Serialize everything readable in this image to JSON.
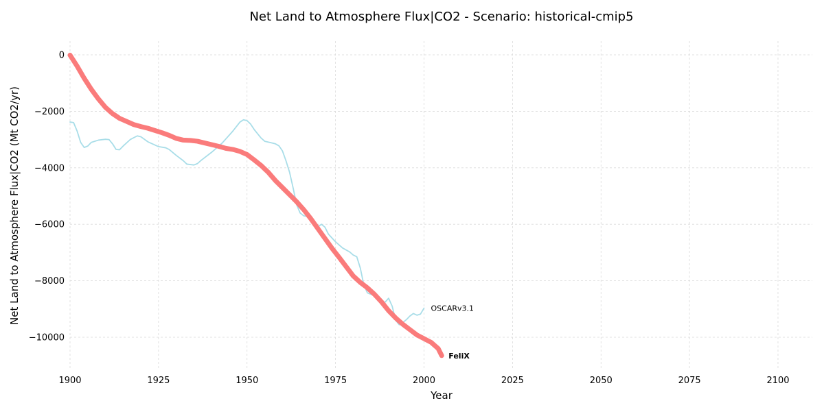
{
  "chart_data": {
    "type": "line",
    "title": "Net Land to Atmosphere Flux|CO2 - Scenario: historical-cmip5",
    "xlabel": "Year",
    "ylabel": "Net Land to Atmosphere Flux|CO2 (Mt CO2/yr)",
    "xlim": [
      1900,
      2110
    ],
    "ylim": [
      -11000,
      500
    ],
    "xticks": [
      1900,
      1925,
      1950,
      1975,
      2000,
      2025,
      2050,
      2075,
      2100
    ],
    "yticks": [
      0,
      -2000,
      -4000,
      -6000,
      -8000,
      -10000
    ],
    "xtick_labels": [
      "1900",
      "1925",
      "1950",
      "1975",
      "2000",
      "2025",
      "2050",
      "2075",
      "2100"
    ],
    "ytick_labels": [
      "0",
      "−2000",
      "−4000",
      "−6000",
      "−8000",
      "−10000"
    ],
    "grid": true,
    "legend": "none (series labelled at line ends)",
    "series": [
      {
        "name": "OSCARv3.1",
        "color": "#a8dde8",
        "width": "thin",
        "label_weight": "normal",
        "points": [
          [
            1900,
            -2380
          ],
          [
            1901,
            -2400
          ],
          [
            1902,
            -2700
          ],
          [
            1903,
            -3100
          ],
          [
            1904,
            -3280
          ],
          [
            1905,
            -3230
          ],
          [
            1906,
            -3100
          ],
          [
            1908,
            -3020
          ],
          [
            1910,
            -2990
          ],
          [
            1911,
            -3000
          ],
          [
            1912,
            -3150
          ],
          [
            1913,
            -3350
          ],
          [
            1914,
            -3360
          ],
          [
            1915,
            -3230
          ],
          [
            1917,
            -3000
          ],
          [
            1919,
            -2870
          ],
          [
            1920,
            -2900
          ],
          [
            1922,
            -3080
          ],
          [
            1925,
            -3250
          ],
          [
            1927,
            -3290
          ],
          [
            1928,
            -3350
          ],
          [
            1930,
            -3560
          ],
          [
            1932,
            -3750
          ],
          [
            1933,
            -3870
          ],
          [
            1935,
            -3900
          ],
          [
            1936,
            -3850
          ],
          [
            1937,
            -3740
          ],
          [
            1940,
            -3450
          ],
          [
            1943,
            -3120
          ],
          [
            1946,
            -2700
          ],
          [
            1948,
            -2380
          ],
          [
            1949,
            -2300
          ],
          [
            1950,
            -2330
          ],
          [
            1951,
            -2450
          ],
          [
            1952,
            -2640
          ],
          [
            1954,
            -2950
          ],
          [
            1955,
            -3060
          ],
          [
            1957,
            -3120
          ],
          [
            1958,
            -3150
          ],
          [
            1959,
            -3220
          ],
          [
            1960,
            -3400
          ],
          [
            1961,
            -3750
          ],
          [
            1962,
            -4150
          ],
          [
            1963,
            -4700
          ],
          [
            1964,
            -5300
          ],
          [
            1965,
            -5600
          ],
          [
            1966,
            -5700
          ],
          [
            1967,
            -5720
          ],
          [
            1968,
            -5820
          ],
          [
            1969,
            -5950
          ],
          [
            1970,
            -6100
          ],
          [
            1971,
            -6000
          ],
          [
            1972,
            -6100
          ],
          [
            1973,
            -6350
          ],
          [
            1975,
            -6620
          ],
          [
            1977,
            -6840
          ],
          [
            1979,
            -6980
          ],
          [
            1980,
            -7090
          ],
          [
            1981,
            -7150
          ],
          [
            1982,
            -7550
          ],
          [
            1983,
            -8150
          ],
          [
            1984,
            -8430
          ],
          [
            1985,
            -8480
          ],
          [
            1986,
            -8500
          ],
          [
            1987,
            -8600
          ],
          [
            1988,
            -8800
          ],
          [
            1989,
            -8760
          ],
          [
            1990,
            -8620
          ],
          [
            1991,
            -8900
          ],
          [
            1992,
            -9400
          ],
          [
            1993,
            -9560
          ],
          [
            1994,
            -9480
          ],
          [
            1995,
            -9380
          ],
          [
            1996,
            -9250
          ],
          [
            1997,
            -9160
          ],
          [
            1998,
            -9220
          ],
          [
            1999,
            -9180
          ],
          [
            2000,
            -8970
          ]
        ]
      },
      {
        "name": "FeliX",
        "color": "#fa7b7b",
        "width": "thick",
        "label_weight": "bold",
        "points": [
          [
            1900,
            -10
          ],
          [
            1902,
            -400
          ],
          [
            1904,
            -830
          ],
          [
            1906,
            -1220
          ],
          [
            1908,
            -1560
          ],
          [
            1910,
            -1860
          ],
          [
            1912,
            -2080
          ],
          [
            1914,
            -2250
          ],
          [
            1916,
            -2360
          ],
          [
            1918,
            -2470
          ],
          [
            1920,
            -2540
          ],
          [
            1922,
            -2600
          ],
          [
            1924,
            -2680
          ],
          [
            1926,
            -2760
          ],
          [
            1928,
            -2850
          ],
          [
            1930,
            -2960
          ],
          [
            1932,
            -3020
          ],
          [
            1934,
            -3030
          ],
          [
            1936,
            -3060
          ],
          [
            1938,
            -3120
          ],
          [
            1940,
            -3180
          ],
          [
            1942,
            -3240
          ],
          [
            1944,
            -3310
          ],
          [
            1946,
            -3350
          ],
          [
            1948,
            -3420
          ],
          [
            1950,
            -3530
          ],
          [
            1952,
            -3720
          ],
          [
            1954,
            -3920
          ],
          [
            1956,
            -4160
          ],
          [
            1958,
            -4450
          ],
          [
            1960,
            -4700
          ],
          [
            1962,
            -4950
          ],
          [
            1964,
            -5200
          ],
          [
            1966,
            -5480
          ],
          [
            1968,
            -5800
          ],
          [
            1970,
            -6150
          ],
          [
            1972,
            -6500
          ],
          [
            1974,
            -6850
          ],
          [
            1976,
            -7170
          ],
          [
            1978,
            -7500
          ],
          [
            1980,
            -7830
          ],
          [
            1982,
            -8060
          ],
          [
            1984,
            -8250
          ],
          [
            1986,
            -8480
          ],
          [
            1988,
            -8750
          ],
          [
            1990,
            -9060
          ],
          [
            1992,
            -9320
          ],
          [
            1994,
            -9540
          ],
          [
            1996,
            -9730
          ],
          [
            1998,
            -9920
          ],
          [
            2000,
            -10050
          ],
          [
            2002,
            -10180
          ],
          [
            2004,
            -10400
          ],
          [
            2005,
            -10650
          ]
        ]
      }
    ]
  }
}
